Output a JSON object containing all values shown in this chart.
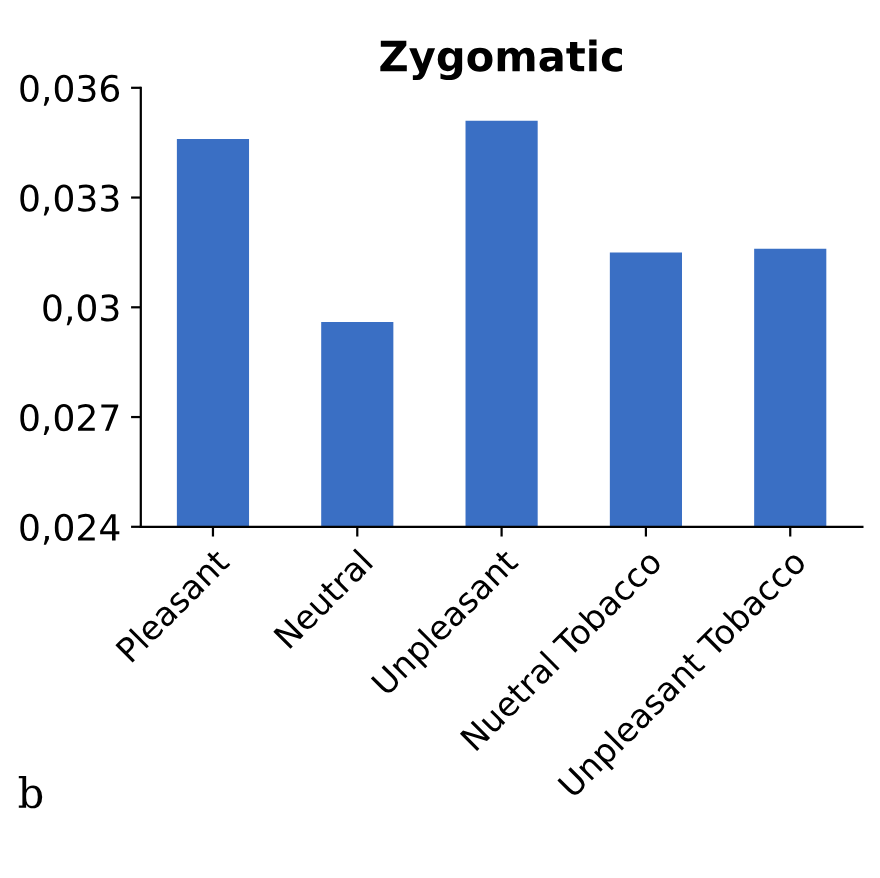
{
  "chart_data": {
    "type": "bar",
    "title": "Zygomatic",
    "categories": [
      "Pleasant",
      "Neutral",
      "Unpleasant",
      "Nuetral Tobacco",
      "Unpleasant Tobacco"
    ],
    "values": [
      0.0346,
      0.0296,
      0.0351,
      0.0315,
      0.0316
    ],
    "color": "#3a6fc4",
    "ylim": [
      0.024,
      0.036
    ],
    "yticks": [
      {
        "value": 0.024,
        "label": "0,024"
      },
      {
        "value": 0.027,
        "label": "0,027"
      },
      {
        "value": 0.03,
        "label": "0,03"
      },
      {
        "value": 0.033,
        "label": "0,033"
      },
      {
        "value": 0.036,
        "label": "0,036"
      }
    ],
    "annotations": [
      "b"
    ],
    "grid": false
  }
}
